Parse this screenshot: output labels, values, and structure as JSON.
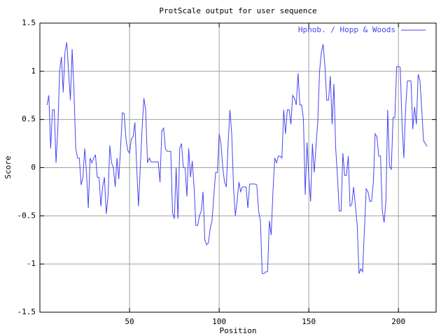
{
  "chart_data": {
    "type": "line",
    "title": "ProtScale output for user sequence",
    "x_label": "Position",
    "y_label": "Score",
    "x": [
      4,
      5,
      6,
      7,
      8,
      9,
      10,
      11,
      12,
      13,
      14,
      15,
      16,
      17,
      18,
      19,
      20,
      21,
      22,
      23,
      24,
      25,
      26,
      27,
      28,
      29,
      30,
      31,
      32,
      33,
      34,
      35,
      36,
      37,
      38,
      39,
      40,
      41,
      42,
      43,
      44,
      45,
      46,
      47,
      48,
      49,
      50,
      51,
      52,
      53,
      54,
      55,
      56,
      57,
      58,
      59,
      60,
      61,
      62,
      63,
      64,
      65,
      66,
      67,
      68,
      69,
      70,
      71,
      72,
      73,
      74,
      75,
      76,
      77,
      78,
      79,
      80,
      81,
      82,
      83,
      84,
      85,
      86,
      87,
      88,
      89,
      90,
      91,
      92,
      93,
      94,
      95,
      96,
      97,
      98,
      99,
      100,
      101,
      102,
      103,
      104,
      105,
      106,
      107,
      108,
      109,
      110,
      111,
      112,
      113,
      114,
      115,
      116,
      117,
      118,
      119,
      120,
      121,
      122,
      123,
      124,
      125,
      126,
      127,
      128,
      129,
      130,
      131,
      132,
      133,
      134,
      135,
      136,
      137,
      138,
      139,
      140,
      141,
      142,
      143,
      144,
      145,
      146,
      147,
      148,
      149,
      150,
      151,
      152,
      153,
      154,
      155,
      156,
      157,
      158,
      159,
      160,
      161,
      162,
      163,
      164,
      165,
      166,
      167,
      168,
      169,
      170,
      171,
      172,
      173,
      174,
      175,
      176,
      177,
      178,
      179,
      180,
      181,
      182,
      183,
      184,
      185,
      186,
      187,
      188,
      189,
      190,
      191,
      192,
      193,
      194,
      195,
      196,
      197,
      198,
      199,
      200,
      201,
      202,
      203,
      204,
      205,
      206,
      207,
      208,
      209,
      210,
      211,
      212,
      213,
      214,
      215,
      216
    ],
    "series": [
      {
        "name": "Hphob. / Hopp & Woods",
        "color": "#4646f0",
        "values": [
          0.65,
          0.75,
          0.2,
          0.6,
          0.6,
          0.05,
          0.4,
          1.0,
          1.15,
          0.78,
          1.2,
          1.3,
          1.0,
          0.7,
          1.23,
          0.8,
          0.2,
          0.1,
          0.1,
          -0.18,
          -0.1,
          0.2,
          -0.05,
          -0.42,
          0.1,
          0.05,
          0.1,
          0.13,
          -0.1,
          -0.1,
          -0.4,
          -0.2,
          -0.1,
          -0.48,
          -0.3,
          0.23,
          0.05,
          0.0,
          -0.2,
          0.1,
          -0.12,
          0.2,
          0.57,
          0.56,
          0.3,
          0.18,
          0.15,
          0.3,
          0.32,
          0.47,
          0.0,
          -0.4,
          0.0,
          0.4,
          0.72,
          0.6,
          0.05,
          0.1,
          0.06,
          0.06,
          0.06,
          0.06,
          0.06,
          -0.15,
          0.38,
          0.41,
          0.2,
          0.17,
          0.17,
          0.17,
          -0.47,
          -0.53,
          0.0,
          -0.53,
          0.2,
          0.25,
          0.0,
          0.0,
          -0.3,
          0.2,
          -0.1,
          0.07,
          -0.2,
          -0.6,
          -0.6,
          -0.5,
          -0.45,
          -0.25,
          -0.75,
          -0.8,
          -0.78,
          -0.63,
          -0.55,
          -0.3,
          -0.05,
          -0.05,
          0.35,
          0.25,
          0.0,
          -0.15,
          -0.2,
          0.25,
          0.6,
          0.35,
          -0.2,
          -0.5,
          -0.35,
          -0.15,
          -0.25,
          -0.2,
          -0.2,
          -0.2,
          -0.42,
          -0.17,
          -0.17,
          -0.17,
          -0.17,
          -0.18,
          -0.45,
          -0.55,
          -1.1,
          -1.1,
          -1.08,
          -1.08,
          -0.55,
          -0.7,
          -0.25,
          0.1,
          0.05,
          0.12,
          0.12,
          0.1,
          0.6,
          0.35,
          0.6,
          0.6,
          0.45,
          0.75,
          0.72,
          0.65,
          0.98,
          0.65,
          0.65,
          0.5,
          -0.28,
          0.26,
          -0.1,
          -0.35,
          0.25,
          -0.05,
          0.22,
          0.48,
          1.0,
          1.2,
          1.28,
          1.05,
          0.7,
          0.7,
          0.95,
          0.45,
          0.87,
          0.2,
          -0.1,
          -0.45,
          -0.45,
          0.15,
          -0.08,
          -0.08,
          0.12,
          -0.4,
          -0.38,
          -0.2,
          -0.4,
          -0.6,
          -1.1,
          -1.05,
          -1.08,
          -0.65,
          -0.22,
          -0.25,
          -0.35,
          -0.35,
          -0.15,
          0.35,
          0.32,
          0.12,
          0.12,
          -0.45,
          -0.57,
          -0.35,
          0.6,
          0.02,
          -0.02,
          0.52,
          0.52,
          1.05,
          1.05,
          1.04,
          0.45,
          0.1,
          0.62,
          0.9,
          0.9,
          0.9,
          0.4,
          0.63,
          0.45,
          0.97,
          0.9,
          0.6,
          0.28,
          0.25,
          0.22
        ]
      }
    ],
    "xlim": [
      0,
      221
    ],
    "ylim": [
      -1.5,
      1.5
    ],
    "xticks": [
      50,
      100,
      150,
      200
    ],
    "yticks": [
      -1.5,
      -1,
      -0.5,
      0,
      0.5,
      1,
      1.5
    ],
    "grid": true,
    "legend": "top-right"
  }
}
